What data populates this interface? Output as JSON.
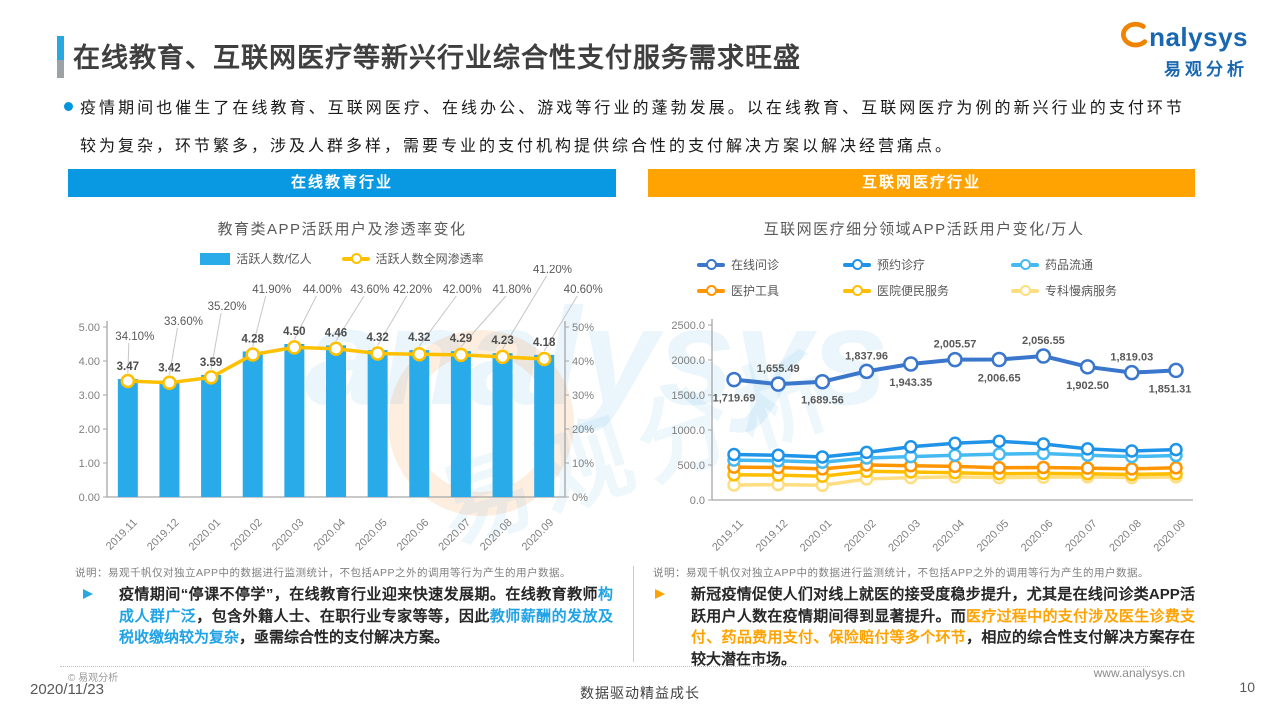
{
  "header": {
    "title": "在线教育、互联网医疗等新兴行业综合性支付服务需求旺盛",
    "logo_brand": "nalysys",
    "logo_cn": "易观分析"
  },
  "intro": {
    "text": "疫情期间也催生了在线教育、互联网医疗、在线办公、游戏等行业的蓬勃发展。以在线教育、互联网医疗为例的新兴行业的支付环节较为复杂，环节繁多，涉及人群多样，需要专业的支付机构提供综合性的支付解决方案以解决经营痛点。"
  },
  "sections": {
    "education": {
      "header": "在线教育行业",
      "note": "说明：易观千帆仅对独立APP中的数据进行监测统计，不包括APP之外的调用等行为产生的用户数据。",
      "bullet_segments": [
        {
          "text": "疫情期间“停课不停学”，在线教育行业迎来快速发展期。在线教育教师",
          "color": ""
        },
        {
          "text": "构成人群广泛",
          "color": "#1FA3E6"
        },
        {
          "text": "，包含外籍人士、在职行业专家等等，因此",
          "color": ""
        },
        {
          "text": "教师薪酬的发放及税收缴纳较为复杂",
          "color": "#1FA3E6"
        },
        {
          "text": "，亟需综合性的支付解决方案。",
          "color": ""
        }
      ]
    },
    "healthcare": {
      "header": "互联网医疗行业",
      "note": "说明：易观千帆仅对独立APP中的数据进行监测统计，不包括APP之外的调用等行为产生的用户数据。",
      "bullet_segments": [
        {
          "text": "新冠疫情促使人们对线上就医的接受度稳步提升，尤其是在线问诊类APP活跃用户人数在疫情期间得到显著提升。而",
          "color": ""
        },
        {
          "text": "医疗过程中的支付涉及医生诊费支付、药品费用支付、保险赔付等多个环节",
          "color": "#FFA302"
        },
        {
          "text": "，相应的综合性支付解决方案存在较大潜在市场。",
          "color": ""
        }
      ]
    }
  },
  "footer": {
    "copyright": "© 易观分析",
    "date": "2020/11/23",
    "slogan": "数据驱动精益成长",
    "website": "www.analysys.cn",
    "page_number": "10"
  },
  "chart_data": [
    {
      "type": "bar",
      "title": "教育类APP活跃用户及渗透率变化",
      "categories": [
        "2019.11",
        "2019.12",
        "2020.01",
        "2020.02",
        "2020.03",
        "2020.04",
        "2020.05",
        "2020.06",
        "2020.07",
        "2020.08",
        "2020.09"
      ],
      "left_axis": {
        "min": 0,
        "max": 5,
        "tick_labels": [
          "5.00",
          "4.00",
          "3.00",
          "2.00",
          "1.00",
          "0.00"
        ]
      },
      "right_axis": {
        "min": 0,
        "max": 50,
        "tick_labels": [
          "50%",
          "40%",
          "30%",
          "20%",
          "10%",
          "0%"
        ]
      },
      "legend_position": "top",
      "grid": false,
      "series": [
        {
          "name": "活跃人数/亿人",
          "kind": "bar",
          "axis": "left",
          "color": "#29ABE9",
          "values": [
            3.47,
            3.42,
            3.59,
            4.28,
            4.5,
            4.46,
            4.32,
            4.32,
            4.29,
            4.23,
            4.18
          ],
          "labels": [
            "3.47",
            "3.42",
            "3.59",
            "4.28",
            "4.50",
            "4.46",
            "4.32",
            "4.32",
            "4.29",
            "4.23",
            "4.18"
          ]
        },
        {
          "name": "活跃人数全网渗透率",
          "kind": "line",
          "axis": "right",
          "color": "#FFC000",
          "values": [
            34.1,
            33.6,
            35.2,
            41.9,
            44.0,
            43.6,
            42.2,
            42.0,
            41.8,
            41.2,
            40.6
          ],
          "labels": [
            "34.10%",
            "33.60%",
            "35.20%",
            "41.90%",
            "44.00%",
            "43.60%",
            "42.20%",
            "42.00%",
            "41.80%",
            "41.20%",
            "40.60%"
          ]
        }
      ]
    },
    {
      "type": "line",
      "title": "互联网医疗细分领域APP活跃用户变化/万人",
      "categories": [
        "2019.11",
        "2019.12",
        "2020.01",
        "2020.02",
        "2020.03",
        "2020.04",
        "2020.05",
        "2020.06",
        "2020.07",
        "2020.08",
        "2020.09"
      ],
      "y_axis": {
        "min": 0,
        "max": 2500,
        "tick_labels": [
          "2500.0",
          "2000.0",
          "1500.0",
          "1000.0",
          "500.0",
          "0.0"
        ]
      },
      "legend_position": "top",
      "grid": false,
      "series": [
        {
          "name": "在线问诊",
          "color": "#3A77CC",
          "values": [
            1719.69,
            1655.49,
            1689.56,
            1837.96,
            1943.35,
            2005.57,
            2006.65,
            2056.55,
            1902.5,
            1819.03,
            1851.31
          ],
          "labels": [
            "1,719.69",
            "1,655.49",
            "1,689.56",
            "1,837.96",
            "1,943.35",
            "2,005.57",
            "2,006.65",
            "2,056.55",
            "1,902.50",
            "1,819.03",
            "1,851.31"
          ]
        },
        {
          "name": "预约诊疗",
          "color": "#1F93E8",
          "values": [
            650,
            640,
            615,
            680,
            760,
            810,
            840,
            800,
            730,
            700,
            720
          ]
        },
        {
          "name": "药品流通",
          "color": "#45BAF2",
          "values": [
            570,
            560,
            540,
            600,
            620,
            640,
            655,
            665,
            640,
            620,
            635
          ]
        },
        {
          "name": "医护工具",
          "color": "#FF9500",
          "values": [
            470,
            465,
            445,
            500,
            490,
            480,
            460,
            465,
            455,
            445,
            460
          ]
        },
        {
          "name": "医院便民服务",
          "color": "#FFBE00",
          "values": [
            360,
            355,
            340,
            410,
            400,
            390,
            375,
            380,
            375,
            365,
            375
          ]
        },
        {
          "name": "专科慢病服务",
          "color": "#FFDE82",
          "values": [
            215,
            220,
            210,
            300,
            320,
            330,
            320,
            325,
            330,
            320,
            330
          ]
        }
      ]
    }
  ]
}
